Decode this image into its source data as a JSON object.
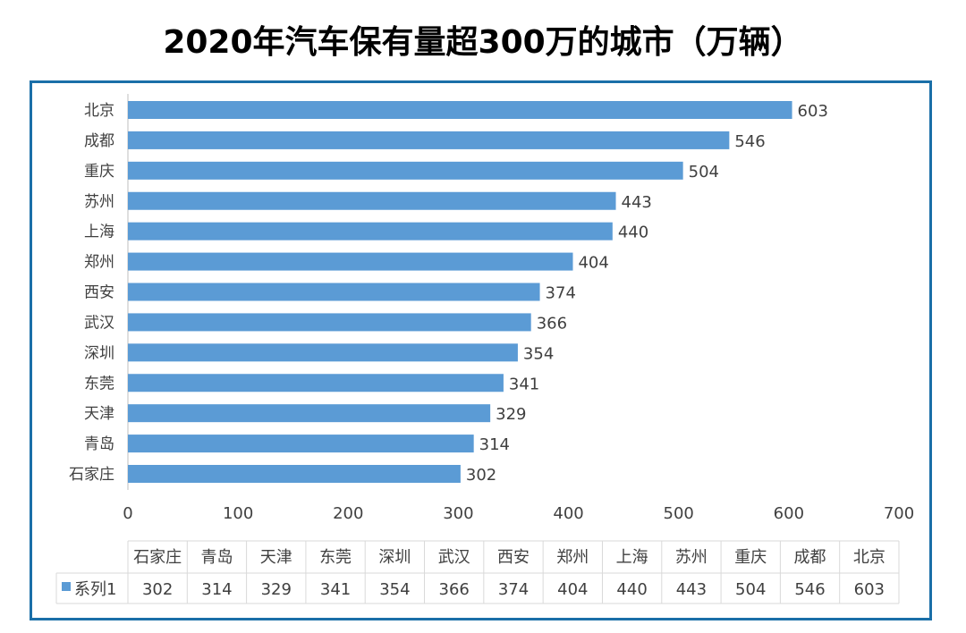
{
  "chart_data": {
    "type": "bar",
    "orientation": "horizontal",
    "title": "2020年汽车保有量超300万的城市（万辆）",
    "categories": [
      "北京",
      "成都",
      "重庆",
      "苏州",
      "上海",
      "郑州",
      "西安",
      "武汉",
      "深圳",
      "东莞",
      "天津",
      "青岛",
      "石家庄"
    ],
    "series": [
      {
        "name": "系列1",
        "values": [
          603,
          546,
          504,
          443,
          440,
          404,
          374,
          366,
          354,
          341,
          329,
          314,
          302
        ]
      }
    ],
    "xlim": [
      0,
      700
    ],
    "xticks": [
      0,
      100,
      200,
      300,
      400,
      500,
      600,
      700
    ],
    "grid": false,
    "data_table": true,
    "color": "#5b9bd5"
  }
}
